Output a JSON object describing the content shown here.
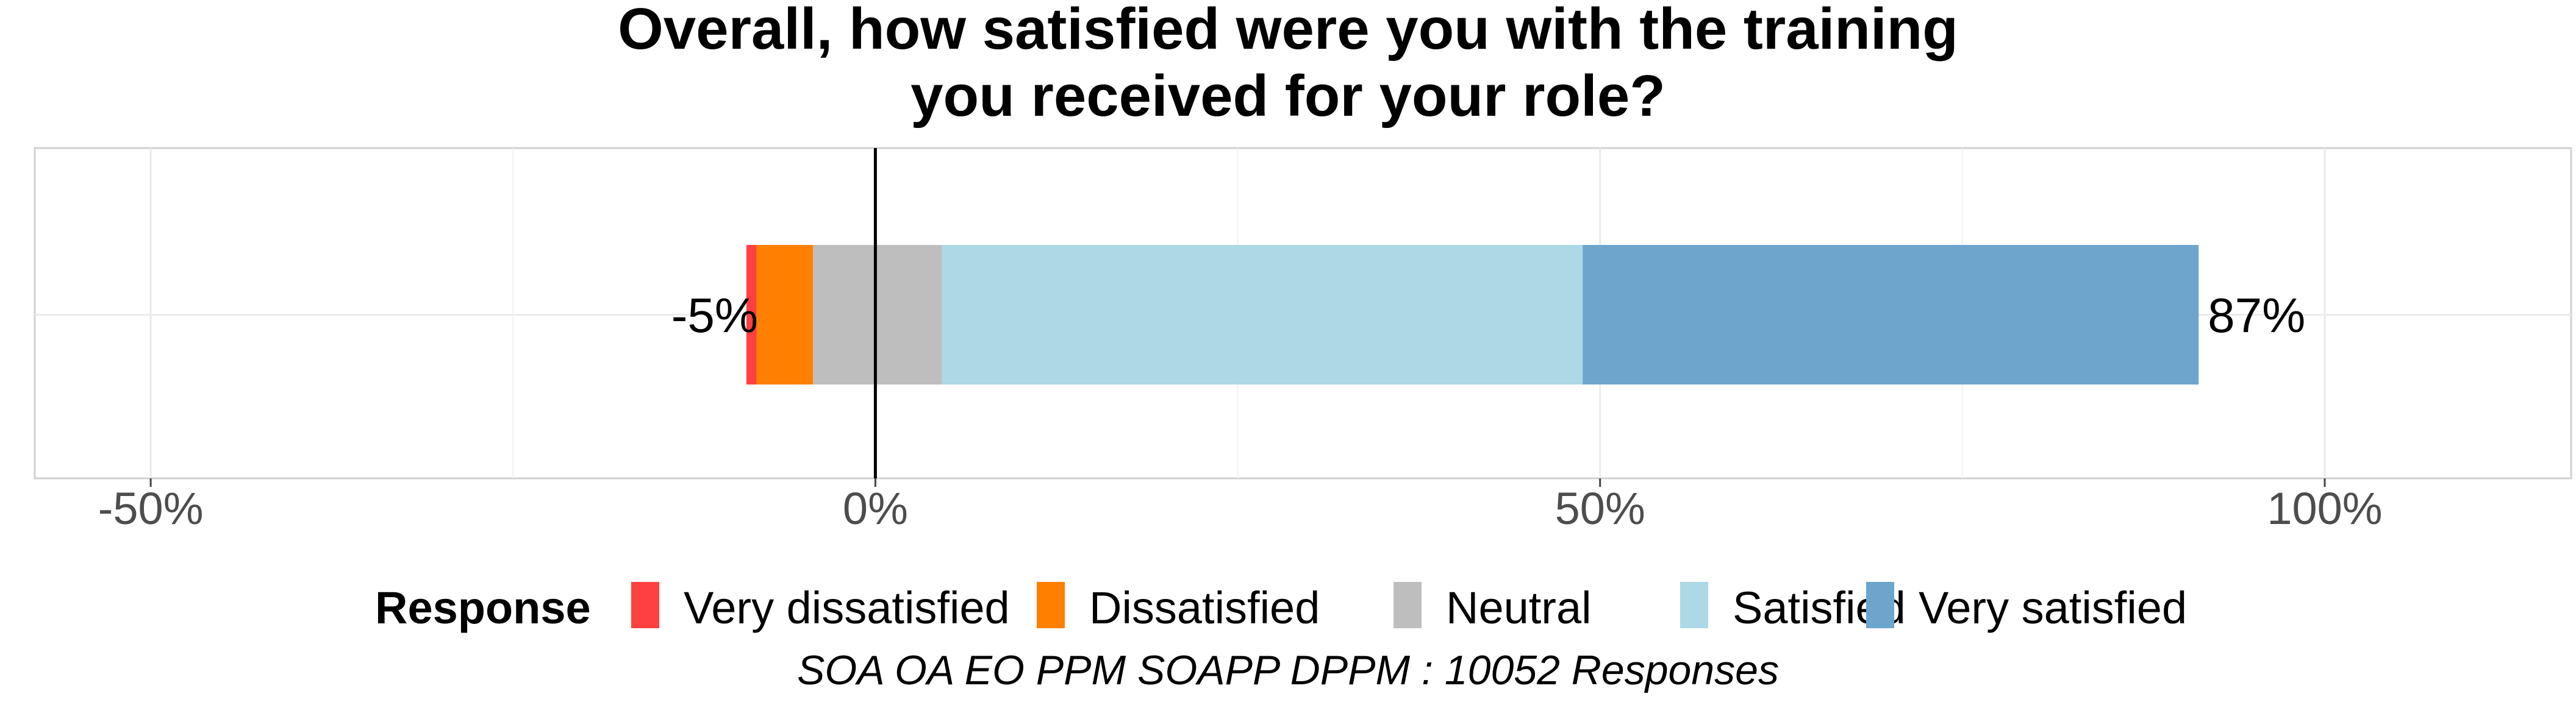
{
  "chart_data": {
    "type": "bar",
    "orientation": "horizontal",
    "stacked": "diverging",
    "title_lines": [
      "Overall, how satisfied were you with the training",
      "you received for your role?"
    ],
    "xlim": [
      -58,
      117
    ],
    "x_ticks": [
      {
        "value": -50,
        "label": "-50%"
      },
      {
        "value": 0,
        "label": "0%"
      },
      {
        "value": 50,
        "label": "50%"
      },
      {
        "value": 100,
        "label": "100%"
      }
    ],
    "minor_ticks": [
      -25,
      25,
      75
    ],
    "zero_line": 0,
    "grid": true,
    "series": [
      {
        "name": "Very dissatisfied",
        "start": -8.9,
        "end": -8.2,
        "color": "#FF4040"
      },
      {
        "name": "Dissatisfied",
        "start": -8.2,
        "end": -4.3,
        "color": "#FF7F00"
      },
      {
        "name": "Neutral",
        "start": -4.3,
        "end": 4.6,
        "color": "#BEBEBE"
      },
      {
        "name": "Satisfied",
        "start": 4.6,
        "end": 48.8,
        "color": "#ADD8E6"
      },
      {
        "name": "Very satisfied",
        "start": 48.8,
        "end": 91.3,
        "color": "#6CA6CD"
      }
    ],
    "annotations": [
      {
        "text": "-5%",
        "x": -8.9,
        "side": "left"
      },
      {
        "text": "87%",
        "x": 91.3,
        "side": "right"
      }
    ],
    "legend": {
      "title": "Response",
      "position": "bottom"
    },
    "caption": "SOA OA EO PPM SOAPP DPPM : 10052 Responses"
  }
}
